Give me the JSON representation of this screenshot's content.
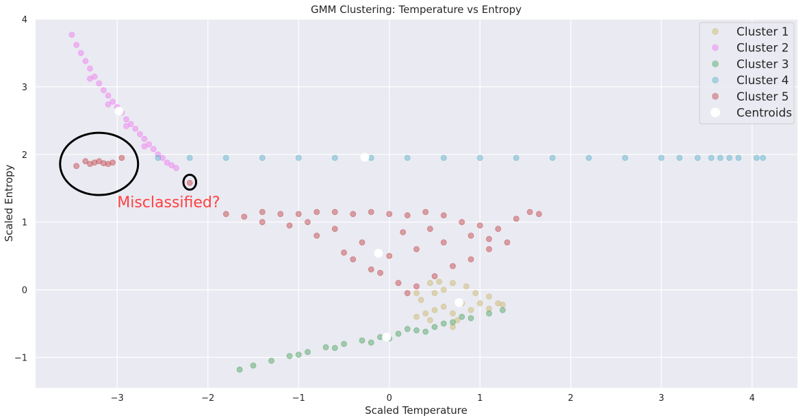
{
  "chart_data": {
    "type": "scatter",
    "title": "GMM Clustering: Temperature vs Entropy",
    "xlabel": "Scaled Temperature",
    "ylabel": "Scaled Entropy",
    "xlim": [
      -3.9,
      4.5
    ],
    "ylim": [
      -1.45,
      4.0
    ],
    "xticks": [
      -3,
      -2,
      -1,
      0,
      1,
      2,
      3,
      4
    ],
    "yticks": [
      -1,
      0,
      1,
      2,
      3,
      4
    ],
    "xtick_labels": [
      "−3",
      "−2",
      "−1",
      "0",
      "1",
      "2",
      "3",
      "4"
    ],
    "ytick_labels": [
      "−1",
      "0",
      "1",
      "2",
      "3",
      "4"
    ],
    "grid": true,
    "legend_position": "top-right",
    "series": [
      {
        "name": "Cluster 1",
        "color": "#ccb974",
        "points": [
          [
            0.3,
            -0.05
          ],
          [
            0.45,
            0.1
          ],
          [
            0.55,
            0.12
          ],
          [
            0.7,
            0.1
          ],
          [
            0.85,
            0.05
          ],
          [
            0.95,
            -0.05
          ],
          [
            1.1,
            -0.1
          ],
          [
            1.2,
            -0.2
          ],
          [
            1.25,
            -0.22
          ],
          [
            1.0,
            -0.2
          ],
          [
            0.8,
            -0.2
          ],
          [
            0.6,
            -0.25
          ],
          [
            0.5,
            -0.3
          ],
          [
            0.4,
            -0.35
          ],
          [
            0.3,
            -0.4
          ],
          [
            0.7,
            -0.35
          ],
          [
            0.9,
            -0.3
          ],
          [
            0.35,
            -0.15
          ],
          [
            0.5,
            -0.05
          ],
          [
            0.75,
            -0.45
          ],
          [
            0.7,
            -0.55
          ],
          [
            0.45,
            -0.45
          ],
          [
            1.1,
            -0.28
          ],
          [
            0.6,
            0.0
          ]
        ]
      },
      {
        "name": "Cluster 2",
        "color": "#ee82ee",
        "points": [
          [
            -3.5,
            3.77
          ],
          [
            -3.45,
            3.62
          ],
          [
            -3.4,
            3.5
          ],
          [
            -3.35,
            3.38
          ],
          [
            -3.3,
            3.27
          ],
          [
            -3.25,
            3.15
          ],
          [
            -3.2,
            3.05
          ],
          [
            -3.15,
            2.95
          ],
          [
            -3.1,
            2.87
          ],
          [
            -3.05,
            2.78
          ],
          [
            -3.0,
            2.7
          ],
          [
            -2.95,
            2.62
          ],
          [
            -2.9,
            2.52
          ],
          [
            -2.85,
            2.45
          ],
          [
            -2.8,
            2.38
          ],
          [
            -2.75,
            2.3
          ],
          [
            -2.7,
            2.23
          ],
          [
            -2.65,
            2.15
          ],
          [
            -2.6,
            2.08
          ],
          [
            -2.55,
            2.0
          ],
          [
            -2.5,
            1.95
          ],
          [
            -2.45,
            1.88
          ],
          [
            -2.4,
            1.84
          ],
          [
            -2.35,
            1.8
          ],
          [
            -3.3,
            3.12
          ],
          [
            -3.1,
            2.74
          ],
          [
            -2.9,
            2.42
          ],
          [
            -2.7,
            2.12
          ]
        ]
      },
      {
        "name": "Cluster 3",
        "color": "#55a868",
        "points": [
          [
            -1.65,
            -1.18
          ],
          [
            -1.5,
            -1.12
          ],
          [
            -1.3,
            -1.05
          ],
          [
            -1.1,
            -0.98
          ],
          [
            -0.9,
            -0.92
          ],
          [
            -0.7,
            -0.85
          ],
          [
            -0.5,
            -0.8
          ],
          [
            -0.3,
            -0.75
          ],
          [
            -0.1,
            -0.7
          ],
          [
            0.1,
            -0.65
          ],
          [
            0.3,
            -0.6
          ],
          [
            0.5,
            -0.55
          ],
          [
            0.7,
            -0.48
          ],
          [
            0.9,
            -0.42
          ],
          [
            1.1,
            -0.35
          ],
          [
            1.25,
            -0.3
          ],
          [
            0.2,
            -0.58
          ],
          [
            0.4,
            -0.62
          ],
          [
            0.6,
            -0.5
          ],
          [
            0.0,
            -0.72
          ],
          [
            -0.2,
            -0.78
          ],
          [
            -0.6,
            -0.86
          ],
          [
            -1.0,
            -0.96
          ],
          [
            0.8,
            -0.4
          ]
        ]
      },
      {
        "name": "Cluster 4",
        "color": "#64b5cd",
        "points": [
          [
            -2.55,
            1.95
          ],
          [
            -2.2,
            1.95
          ],
          [
            -1.8,
            1.95
          ],
          [
            -1.4,
            1.95
          ],
          [
            -1.0,
            1.95
          ],
          [
            -0.6,
            1.95
          ],
          [
            -0.2,
            1.95
          ],
          [
            0.2,
            1.95
          ],
          [
            0.6,
            1.95
          ],
          [
            1.0,
            1.95
          ],
          [
            1.4,
            1.95
          ],
          [
            1.8,
            1.95
          ],
          [
            2.2,
            1.95
          ],
          [
            2.6,
            1.95
          ],
          [
            3.0,
            1.95
          ],
          [
            3.2,
            1.95
          ],
          [
            3.4,
            1.95
          ],
          [
            3.55,
            1.95
          ],
          [
            3.65,
            1.95
          ],
          [
            3.75,
            1.95
          ],
          [
            3.85,
            1.95
          ],
          [
            4.05,
            1.95
          ],
          [
            4.12,
            1.95
          ]
        ]
      },
      {
        "name": "Cluster 5",
        "color": "#c44e52",
        "points": [
          [
            -1.8,
            1.12
          ],
          [
            -1.6,
            1.08
          ],
          [
            -1.4,
            1.15
          ],
          [
            -1.2,
            1.12
          ],
          [
            -1.0,
            1.12
          ],
          [
            -0.8,
            1.15
          ],
          [
            -0.6,
            1.15
          ],
          [
            -0.4,
            1.12
          ],
          [
            -0.2,
            1.15
          ],
          [
            0.0,
            1.12
          ],
          [
            0.2,
            1.1
          ],
          [
            0.4,
            1.15
          ],
          [
            0.6,
            1.1
          ],
          [
            0.8,
            1.0
          ],
          [
            1.0,
            0.95
          ],
          [
            1.2,
            0.9
          ],
          [
            1.4,
            1.05
          ],
          [
            1.55,
            1.15
          ],
          [
            1.65,
            1.12
          ],
          [
            1.3,
            0.7
          ],
          [
            1.1,
            0.6
          ],
          [
            0.9,
            0.45
          ],
          [
            0.7,
            0.35
          ],
          [
            0.5,
            0.2
          ],
          [
            0.3,
            0.05
          ],
          [
            0.2,
            -0.05
          ],
          [
            0.1,
            0.1
          ],
          [
            -0.2,
            0.3
          ],
          [
            -0.5,
            0.55
          ],
          [
            -0.8,
            0.8
          ],
          [
            -1.1,
            0.95
          ],
          [
            -1.4,
            1.0
          ],
          [
            -0.3,
            0.7
          ],
          [
            0.0,
            0.5
          ],
          [
            0.3,
            0.6
          ],
          [
            -0.6,
            0.9
          ],
          [
            0.6,
            0.7
          ],
          [
            0.9,
            0.8
          ],
          [
            -0.1,
            0.25
          ],
          [
            -0.4,
            0.45
          ],
          [
            0.15,
            0.85
          ],
          [
            -0.9,
            1.0
          ],
          [
            0.45,
            0.9
          ],
          [
            1.1,
            0.75
          ],
          [
            -3.45,
            1.83
          ],
          [
            -3.35,
            1.9
          ],
          [
            -3.3,
            1.86
          ],
          [
            -3.25,
            1.88
          ],
          [
            -3.2,
            1.9
          ],
          [
            -3.15,
            1.87
          ],
          [
            -3.1,
            1.86
          ],
          [
            -3.05,
            1.88
          ],
          [
            -2.95,
            1.95
          ],
          [
            -2.2,
            1.58
          ]
        ]
      }
    ],
    "centroids": {
      "name": "Centroids",
      "color": "#ffffff",
      "points": [
        [
          -2.98,
          2.64
        ],
        [
          -0.27,
          1.96
        ],
        [
          -0.12,
          0.54
        ],
        [
          0.77,
          -0.19
        ],
        [
          -0.03,
          -0.7
        ]
      ]
    },
    "annotations": [
      {
        "text": "Misclassified?",
        "x": -3.0,
        "y": 1.22,
        "color": "#ff4040"
      }
    ],
    "highlight_circles": [
      {
        "cx": -3.2,
        "cy": 1.86,
        "rx": 0.43,
        "ry": 0.46
      },
      {
        "cx": -2.2,
        "cy": 1.59,
        "rx": 0.07,
        "ry": 0.11
      }
    ]
  }
}
